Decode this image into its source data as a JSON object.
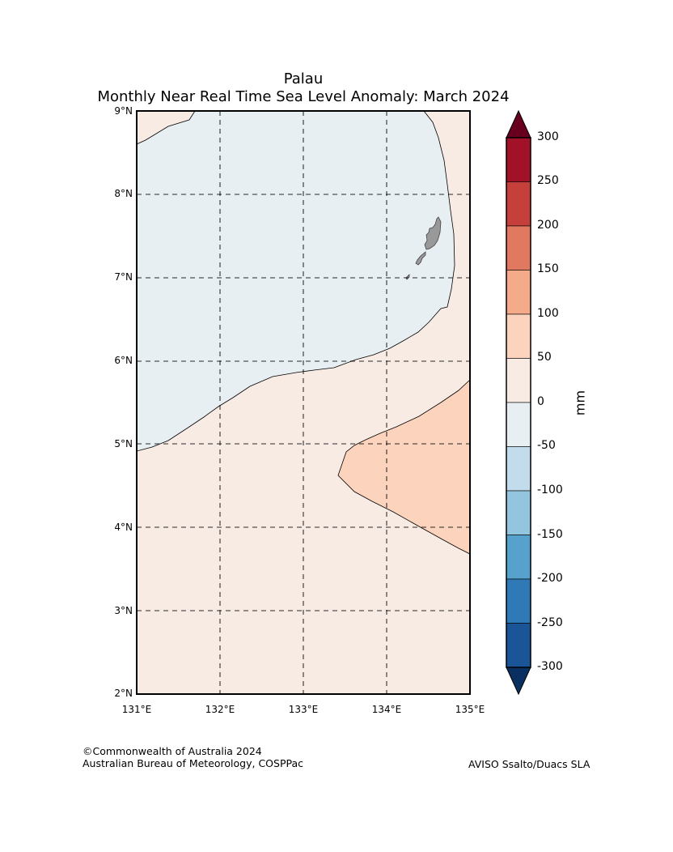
{
  "title": {
    "line1": "Palau",
    "line2": "Monthly Near Real Time Sea Level Anomaly: March 2024"
  },
  "map": {
    "region": "Palau",
    "lon_range": [
      131,
      135
    ],
    "lat_range": [
      2,
      9
    ],
    "lat_ticks": [
      "9°N",
      "8°N",
      "7°N",
      "6°N",
      "5°N",
      "4°N",
      "3°N",
      "2°N"
    ],
    "lon_ticks": [
      "131°E",
      "132°E",
      "133°E",
      "134°E",
      "135°E"
    ],
    "zones": [
      {
        "name": "negative-anomaly-zone",
        "range_mm": "-50 to 0",
        "color": "#e8eff3"
      },
      {
        "name": "positive-anomaly-zone",
        "range_mm": "0 to 50",
        "color": "#f8ebe4"
      },
      {
        "name": "high-anomaly-zone",
        "range_mm": "50 to 100",
        "color": "#fcd3bd"
      }
    ],
    "land_color": "#999999"
  },
  "colorbar": {
    "label": "mm",
    "ticks": [
      "300",
      "250",
      "200",
      "150",
      "100",
      "50",
      "0",
      "-50",
      "-100",
      "-150",
      "-200",
      "-250",
      "-300"
    ],
    "colors": [
      "#67001f",
      "#a11228",
      "#c5403b",
      "#e17860",
      "#f5aa89",
      "#fcd3bd",
      "#f8ebe4",
      "#e8eff3",
      "#c3dcec",
      "#93c5df",
      "#57a2cd",
      "#3079b7",
      "#195597",
      "#0a3061"
    ]
  },
  "credits": {
    "copyright": "©Commonwealth of Australia 2024",
    "bureau": "Australian Bureau of Meteorology, COSPPac",
    "source": "AVISO Ssalto/Duacs SLA"
  }
}
